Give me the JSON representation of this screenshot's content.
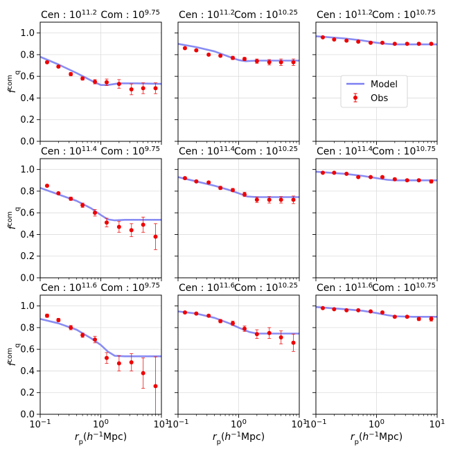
{
  "chart_data": {
    "type": "scatter",
    "xscale": "log",
    "xlim": [
      0.1,
      10
    ],
    "ylim": [
      0.0,
      1.1
    ],
    "grid": true,
    "x_tick_labels": [
      "10^-1",
      "10^0",
      "10^1"
    ],
    "y_tick_labels": [
      "0.0",
      "0.2",
      "0.4",
      "0.6",
      "0.8",
      "1.0"
    ],
    "ylabel": "f_q^com",
    "xlabel": "r_p(h^-1 Mpc)",
    "legend": {
      "placement": "upper panel right",
      "model_label": "Model",
      "obs_label": "Obs"
    },
    "colors": {
      "model": "#7b7ff2",
      "obs": "#ee0000"
    },
    "r_values": [
      0.13,
      0.2,
      0.32,
      0.5,
      0.8,
      1.25,
      2.0,
      3.2,
      5.0,
      8.0
    ],
    "panels": [
      {
        "row": 0,
        "col": 0,
        "cen": "11.2",
        "com": "9.75",
        "model_x": [
          0.1,
          0.2,
          0.4,
          0.7,
          1.0,
          1.3,
          2.0,
          4.0,
          10.0
        ],
        "model_y": [
          0.78,
          0.71,
          0.63,
          0.56,
          0.52,
          0.52,
          0.535,
          0.535,
          0.53
        ],
        "obs_y": [
          0.73,
          0.69,
          0.62,
          0.58,
          0.55,
          0.545,
          0.53,
          0.48,
          0.49,
          0.49
        ],
        "obs_err": [
          0.01,
          0.01,
          0.015,
          0.015,
          0.02,
          0.03,
          0.04,
          0.05,
          0.05,
          0.05
        ]
      },
      {
        "row": 0,
        "col": 1,
        "cen": "11.2",
        "com": "10.25",
        "model_x": [
          0.1,
          0.2,
          0.4,
          0.7,
          1.0,
          1.3,
          2.0,
          4.0,
          10.0
        ],
        "model_y": [
          0.9,
          0.87,
          0.83,
          0.78,
          0.75,
          0.74,
          0.745,
          0.745,
          0.745
        ],
        "obs_y": [
          0.86,
          0.84,
          0.8,
          0.79,
          0.77,
          0.76,
          0.74,
          0.73,
          0.73,
          0.73
        ],
        "obs_err": [
          0.01,
          0.01,
          0.01,
          0.01,
          0.015,
          0.015,
          0.02,
          0.025,
          0.03,
          0.03
        ]
      },
      {
        "row": 0,
        "col": 2,
        "cen": "11.2",
        "com": "10.75",
        "model_x": [
          0.1,
          0.3,
          0.6,
          1.0,
          1.5,
          2.0,
          4.0,
          10.0
        ],
        "model_y": [
          0.97,
          0.95,
          0.93,
          0.91,
          0.9,
          0.895,
          0.895,
          0.895
        ],
        "obs_y": [
          0.96,
          0.94,
          0.93,
          0.92,
          0.91,
          0.91,
          0.9,
          0.9,
          0.9,
          0.9
        ],
        "obs_err": [
          0.005,
          0.005,
          0.005,
          0.005,
          0.005,
          0.008,
          0.008,
          0.01,
          0.01,
          0.01
        ]
      },
      {
        "row": 1,
        "col": 0,
        "cen": "11.4",
        "com": "9.75",
        "model_x": [
          0.1,
          0.2,
          0.4,
          0.7,
          1.0,
          1.3,
          1.7,
          2.5,
          4.0,
          10.0
        ],
        "model_y": [
          0.83,
          0.77,
          0.71,
          0.64,
          0.58,
          0.54,
          0.53,
          0.535,
          0.535,
          0.535
        ],
        "obs_y": [
          0.85,
          0.78,
          0.73,
          0.67,
          0.6,
          0.51,
          0.47,
          0.44,
          0.49,
          0.38
        ],
        "obs_err": [
          0.01,
          0.01,
          0.015,
          0.02,
          0.03,
          0.04,
          0.05,
          0.06,
          0.07,
          0.12
        ]
      },
      {
        "row": 1,
        "col": 1,
        "cen": "11.4",
        "com": "10.25",
        "model_x": [
          0.1,
          0.2,
          0.4,
          0.7,
          1.0,
          1.4,
          2.0,
          4.0,
          10.0
        ],
        "model_y": [
          0.93,
          0.89,
          0.85,
          0.81,
          0.78,
          0.75,
          0.745,
          0.745,
          0.745
        ],
        "obs_y": [
          0.92,
          0.89,
          0.88,
          0.83,
          0.81,
          0.77,
          0.72,
          0.72,
          0.72,
          0.72
        ],
        "obs_err": [
          0.01,
          0.01,
          0.01,
          0.015,
          0.015,
          0.02,
          0.025,
          0.03,
          0.03,
          0.035
        ]
      },
      {
        "row": 1,
        "col": 2,
        "cen": "11.4",
        "com": "10.75",
        "model_x": [
          0.1,
          0.3,
          0.6,
          1.0,
          1.5,
          2.0,
          4.0,
          10.0
        ],
        "model_y": [
          0.98,
          0.96,
          0.94,
          0.92,
          0.905,
          0.9,
          0.9,
          0.9
        ],
        "obs_y": [
          0.97,
          0.97,
          0.96,
          0.93,
          0.93,
          0.93,
          0.91,
          0.9,
          0.9,
          0.89
        ],
        "obs_err": [
          0.005,
          0.005,
          0.005,
          0.005,
          0.008,
          0.01,
          0.01,
          0.01,
          0.01,
          0.015
        ]
      },
      {
        "row": 2,
        "col": 0,
        "cen": "11.6",
        "com": "9.75",
        "model_x": [
          0.1,
          0.2,
          0.4,
          0.7,
          1.0,
          1.3,
          1.7,
          2.5,
          4.0,
          10.0
        ],
        "model_y": [
          0.88,
          0.84,
          0.78,
          0.7,
          0.64,
          0.58,
          0.54,
          0.535,
          0.535,
          0.535
        ],
        "obs_y": [
          0.91,
          0.87,
          0.8,
          0.73,
          0.69,
          0.52,
          0.47,
          0.48,
          0.38,
          0.26
        ],
        "obs_err": [
          0.015,
          0.015,
          0.02,
          0.02,
          0.03,
          0.05,
          0.07,
          0.08,
          0.14,
          0.27
        ]
      },
      {
        "row": 2,
        "col": 1,
        "cen": "11.6",
        "com": "10.25",
        "model_x": [
          0.1,
          0.2,
          0.4,
          0.7,
          1.0,
          1.5,
          2.0,
          4.0,
          10.0
        ],
        "model_y": [
          0.95,
          0.93,
          0.89,
          0.84,
          0.8,
          0.76,
          0.745,
          0.745,
          0.745
        ],
        "obs_y": [
          0.94,
          0.93,
          0.91,
          0.86,
          0.84,
          0.79,
          0.74,
          0.75,
          0.71,
          0.66
        ],
        "obs_err": [
          0.01,
          0.01,
          0.01,
          0.015,
          0.02,
          0.025,
          0.04,
          0.05,
          0.06,
          0.08
        ]
      },
      {
        "row": 2,
        "col": 2,
        "cen": "11.6",
        "com": "10.75",
        "model_x": [
          0.1,
          0.3,
          0.6,
          1.0,
          1.5,
          2.0,
          4.0,
          10.0
        ],
        "model_y": [
          0.99,
          0.97,
          0.955,
          0.935,
          0.915,
          0.905,
          0.9,
          0.9
        ],
        "obs_y": [
          0.98,
          0.97,
          0.96,
          0.96,
          0.95,
          0.94,
          0.9,
          0.9,
          0.88,
          0.88
        ],
        "obs_err": [
          0.005,
          0.005,
          0.005,
          0.005,
          0.008,
          0.01,
          0.01,
          0.01,
          0.015,
          0.02
        ]
      }
    ]
  }
}
